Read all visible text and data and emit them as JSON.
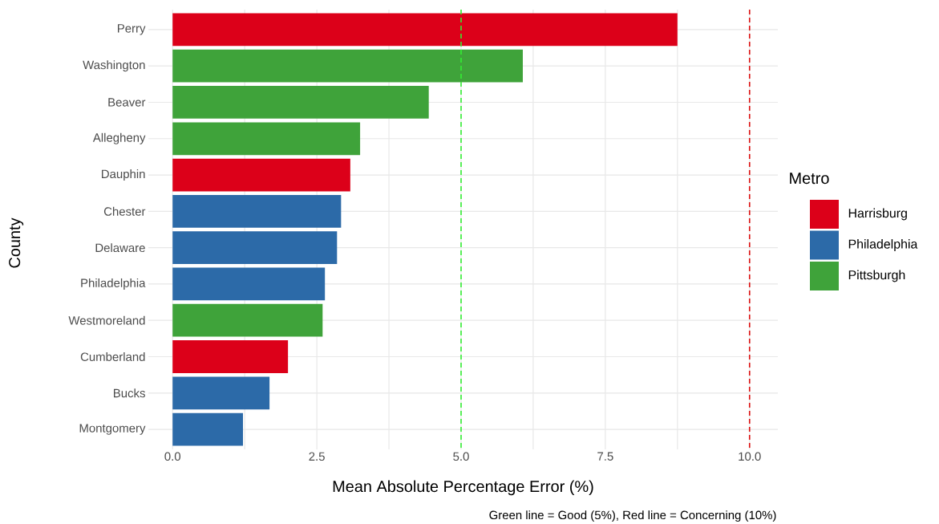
{
  "chart_data": {
    "type": "bar",
    "orientation": "horizontal",
    "xlabel": "Mean Absolute Percentage Error (%)",
    "ylabel": "County",
    "legend_title": "Metro",
    "legend": "right",
    "grid": true,
    "categories": [
      "Perry",
      "Washington",
      "Beaver",
      "Allegheny",
      "Dauphin",
      "Chester",
      "Delaware",
      "Philadelphia",
      "Westmoreland",
      "Cumberland",
      "Bucks",
      "Montgomery"
    ],
    "series": [
      {
        "name": "Harrisburg",
        "color": "#dc0019",
        "values": [
          8.75,
          null,
          null,
          null,
          3.08,
          null,
          null,
          null,
          null,
          2.0,
          null,
          null
        ]
      },
      {
        "name": "Philadelphia",
        "color": "#2c6aa8",
        "values": [
          null,
          null,
          null,
          null,
          null,
          2.92,
          2.85,
          2.64,
          null,
          null,
          1.68,
          1.22
        ]
      },
      {
        "name": "Pittsburgh",
        "color": "#3fa33a",
        "values": [
          null,
          6.07,
          4.44,
          3.25,
          null,
          null,
          null,
          null,
          2.6,
          null,
          null,
          null
        ]
      }
    ],
    "xlim": [
      -0.42,
      10.49
    ],
    "xticks": [
      {
        "value": 0,
        "label": "0.0"
      },
      {
        "value": 1.25,
        "label": null
      },
      {
        "value": 2.5,
        "label": "2.5"
      },
      {
        "value": 3.75,
        "label": null
      },
      {
        "value": 5,
        "label": "5.0"
      },
      {
        "value": 6.25,
        "label": null
      },
      {
        "value": 7.5,
        "label": "7.5"
      },
      {
        "value": 8.75,
        "label": null
      },
      {
        "value": 10,
        "label": "10.0"
      }
    ],
    "ref_lines": [
      {
        "axis": "x",
        "value": 5,
        "color": "#33ee33",
        "line_style": "dashed"
      },
      {
        "axis": "x",
        "value": 10,
        "color": "#dd1111",
        "line_style": "dashed"
      }
    ],
    "annotations": [
      "Green line = Good (5%), Red line = Concerning (10%)"
    ]
  }
}
